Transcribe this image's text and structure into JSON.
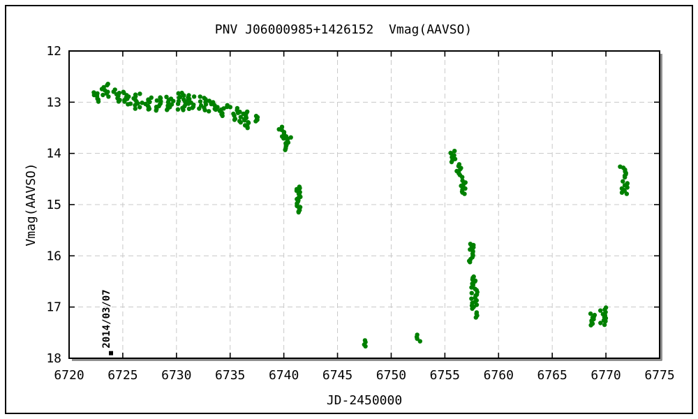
{
  "frame": {
    "background": "#ffffff",
    "outer_border_color": "#000000",
    "plot_border_color": "#000000",
    "plot_shadow_color": "#8f8f8f",
    "grid_color": "#c8c8c8"
  },
  "chart_data": {
    "type": "scatter",
    "title": "PNV J06000985+1426152  Vmag(AAVSO)",
    "xlabel": "JD-2450000",
    "ylabel": "Vmag(AAVSO)",
    "xlim": [
      6720,
      6775
    ],
    "ylim": [
      12,
      18
    ],
    "y_increases_downward": true,
    "x_ticks": [
      6720,
      6725,
      6730,
      6735,
      6740,
      6745,
      6750,
      6755,
      6760,
      6765,
      6770,
      6775
    ],
    "y_ticks": [
      12,
      13,
      14,
      15,
      16,
      17,
      18
    ],
    "grid": true,
    "legend": false,
    "marker": {
      "shape": "circle",
      "color": "#008000",
      "radius_px": 3.2
    },
    "annotation": {
      "label": "2014/03/07",
      "jd": 6723.9,
      "mag": 17.9,
      "marker": "black-square"
    },
    "cluster_format": [
      "jd_start",
      "jd_end",
      "mag_bright",
      "mag_faint"
    ],
    "series": [
      {
        "name": "Vmag (AAVSO)",
        "clusters": [
          [
            6722.1,
            6722.75,
            12.8,
            12.98
          ],
          [
            6723.0,
            6723.8,
            12.65,
            12.88
          ],
          [
            6724.1,
            6724.8,
            12.76,
            12.98
          ],
          [
            6725.05,
            6725.8,
            12.8,
            13.05
          ],
          [
            6726.0,
            6726.85,
            12.83,
            13.12
          ],
          [
            6727.0,
            6727.75,
            12.91,
            13.15
          ],
          [
            6728.0,
            6728.85,
            12.9,
            13.16
          ],
          [
            6729.0,
            6729.8,
            12.9,
            13.15
          ],
          [
            6730.0,
            6730.9,
            12.81,
            13.16
          ],
          [
            6731.0,
            6731.65,
            12.86,
            13.14
          ],
          [
            6732.0,
            6732.85,
            12.89,
            13.16
          ],
          [
            6733.0,
            6733.85,
            12.97,
            13.18
          ],
          [
            6734.0,
            6734.75,
            13.05,
            13.27
          ],
          [
            6735.0,
            6736.0,
            13.1,
            13.4
          ],
          [
            6736.1,
            6736.85,
            13.18,
            13.5
          ],
          [
            6737.25,
            6737.7,
            13.26,
            13.38
          ],
          [
            6739.35,
            6740.05,
            13.49,
            13.71
          ],
          [
            6740.1,
            6740.7,
            13.66,
            13.93
          ],
          [
            6741.15,
            6741.55,
            14.65,
            15.16
          ],
          [
            6747.3,
            6747.65,
            17.66,
            17.76
          ],
          [
            6752.25,
            6752.7,
            17.55,
            17.66
          ],
          [
            6755.45,
            6756.0,
            13.95,
            14.16
          ],
          [
            6756.1,
            6756.75,
            14.22,
            14.46
          ],
          [
            6756.45,
            6757.0,
            14.54,
            14.8
          ],
          [
            6757.15,
            6757.75,
            15.76,
            16.12
          ],
          [
            6757.45,
            6758.05,
            16.4,
            17.03
          ],
          [
            6757.85,
            6758.15,
            17.1,
            17.21
          ],
          [
            6768.5,
            6768.95,
            17.12,
            17.36
          ],
          [
            6769.45,
            6770.0,
            17.02,
            17.34
          ],
          [
            6771.3,
            6771.9,
            14.26,
            14.46
          ],
          [
            6771.45,
            6772.0,
            14.55,
            14.8
          ]
        ]
      }
    ]
  }
}
